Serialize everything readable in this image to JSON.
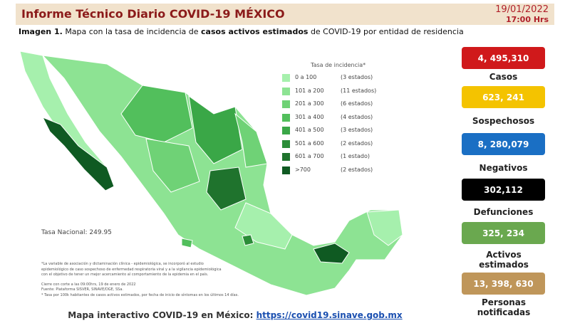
{
  "header": {
    "title": "Informe Técnico Diario COVID-19 MÉXICO",
    "date": "19/01/2022",
    "time": "17:00 Hrs"
  },
  "subtitle": {
    "label": "Imagen 1.",
    "text_1": "Mapa con la tasa de incidencia de",
    "emphasis": "casos activos estimados",
    "text_2": "de COVID-19 por entidad de residencia"
  },
  "legend": {
    "title": "Tasa de incidencia*",
    "items": [
      {
        "range": "0 a 100",
        "count": "(3 estados)",
        "color": "#a6f0ad"
      },
      {
        "range": "101 a 200",
        "count": "(11 estados)",
        "color": "#8de393"
      },
      {
        "range": "201 a 300",
        "count": "(6 estados)",
        "color": "#6fd276"
      },
      {
        "range": "301 a 400",
        "count": "(4 estados)",
        "color": "#52bf5c"
      },
      {
        "range": "401 a 500",
        "count": "(3 estados)",
        "color": "#3aa747"
      },
      {
        "range": "501 a 600",
        "count": "(2 estados)",
        "color": "#2b8d38"
      },
      {
        "range": "601 a 700",
        "count": "(1 estado)",
        "color": "#1f732d"
      },
      {
        "range": ">700",
        "count": "(2 estados)",
        "color": "#0f5a22"
      }
    ]
  },
  "national_rate": "Tasa Nacional: 249.95",
  "notes": [
    "*La variable de asociación y dictaminación clínica - epidemiológica, se incorporó al estudio",
    "epidemiológico de caso sospechoso de enfermedad respiratoria viral y a la vigilancia epidemiológica",
    "con el objetivo de tener un mejor acercamiento al comportamiento de la epidemia en el país.",
    "Cierre con corte a las 09:00hrs, 19 de enero de 2022",
    "Fuente: Plataforma SISVER, SINAVE/DGE, SSa.",
    "* Tasa por 100k habitantes de casos activos estimados, por fecha de inicio de síntomas en los últimos 14 días."
  ],
  "stats": [
    {
      "value": "4, 495,310",
      "label": "Casos",
      "color": "#d0191b"
    },
    {
      "value": "623, 241",
      "label": "Sospechosos",
      "color": "#f4c300"
    },
    {
      "value": "8, 280,079",
      "label": "Negativos",
      "color": "#1a6fc4"
    },
    {
      "value": "302,112",
      "label": "Defunciones",
      "color": "#000000"
    },
    {
      "value": "325, 234",
      "label": "Activos estimados",
      "color": "#6aa84f"
    },
    {
      "value": "13, 398, 630",
      "label": "Personas notificadas",
      "color": "#bf965a"
    }
  ],
  "footer": {
    "text": "Mapa interactivo COVID-19 en México:",
    "link": "https://covid19.sinave.gob.mx"
  }
}
